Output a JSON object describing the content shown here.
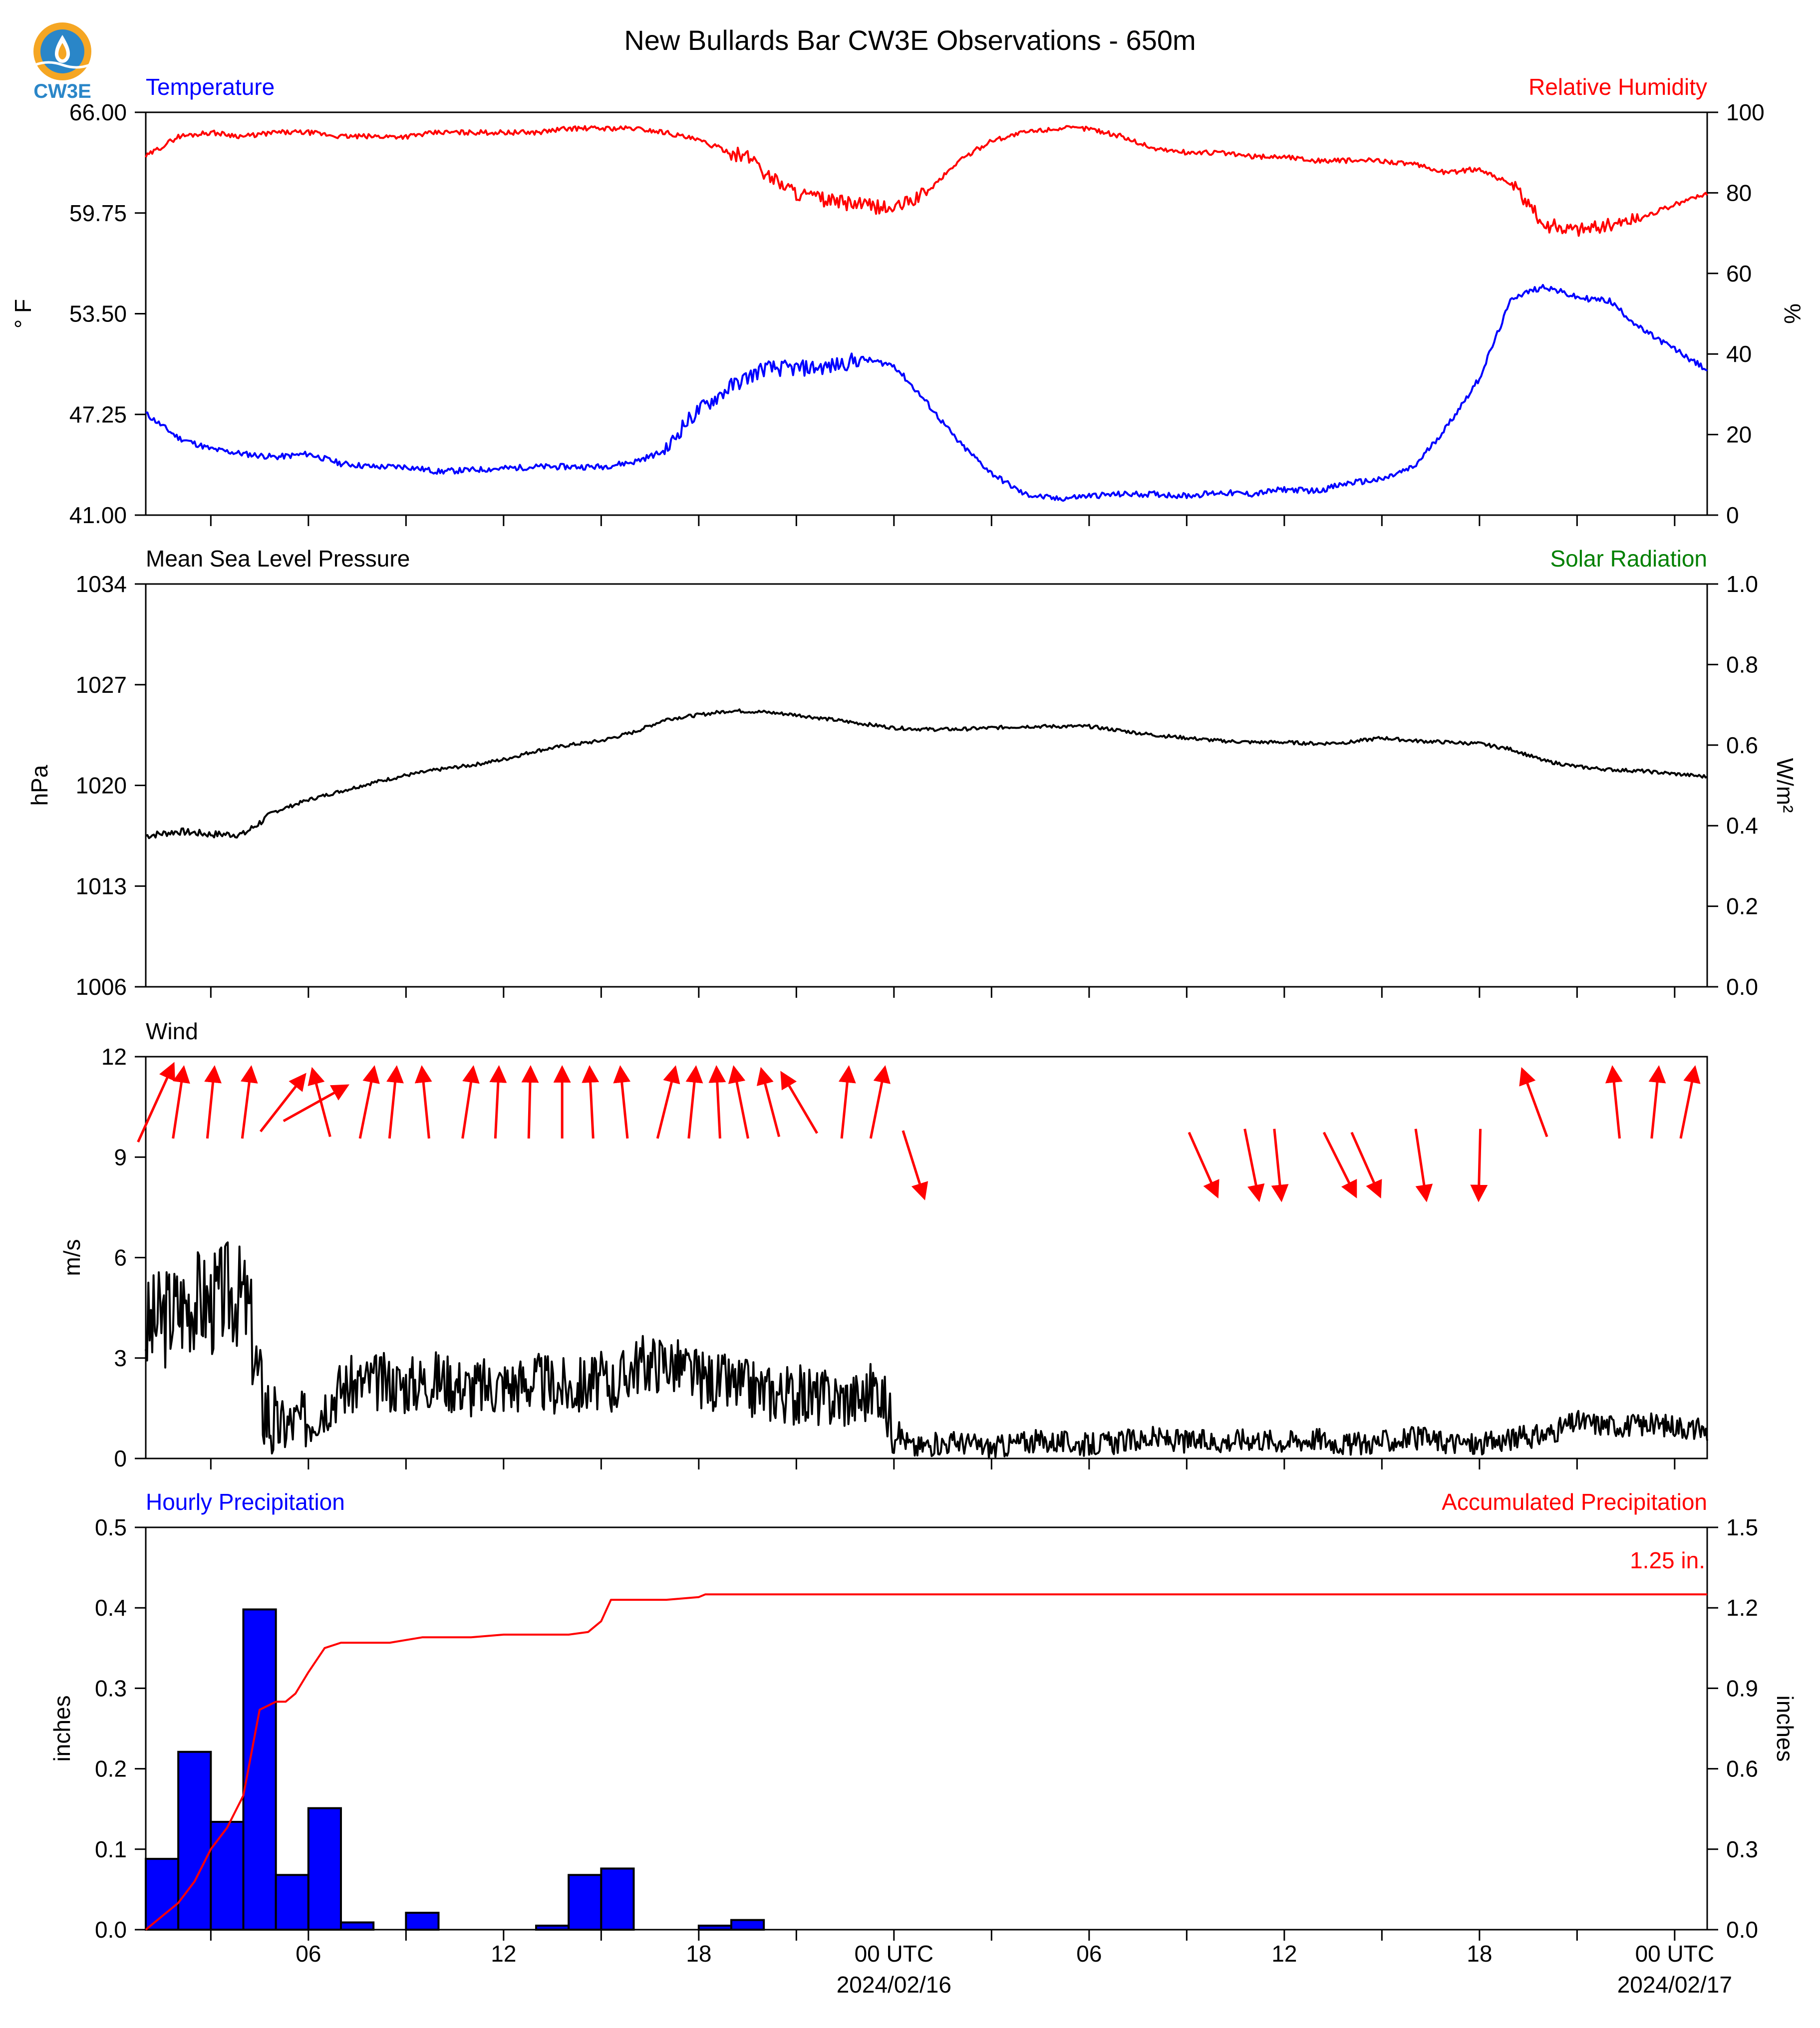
{
  "title": "New Bullards Bar CW3E Observations - 650m",
  "logo_text": "CW3E",
  "colors": {
    "temperature": "#0000ff",
    "humidity": "#ff0000",
    "pressure": "#000000",
    "solar": "#008000",
    "wind": "#000000",
    "wind_arrow": "#ff0000",
    "hourly_bar": "#0000ff",
    "accum": "#ff0000",
    "logo_orange": "#f5a623",
    "logo_blue": "#2a86c8"
  },
  "x_axis": {
    "tick_labels": [
      {
        "hour": 5,
        "text": "06"
      },
      {
        "hour": 11,
        "text": "12"
      },
      {
        "hour": 17,
        "text": "18"
      },
      {
        "hour": 23,
        "text": "00 UTC",
        "sub": "2024/02/16"
      },
      {
        "hour": 29,
        "text": "06"
      },
      {
        "hour": 35,
        "text": "12"
      },
      {
        "hour": 41,
        "text": "18"
      },
      {
        "hour": 47,
        "text": "00 UTC",
        "sub": "2024/02/17"
      }
    ],
    "minor_tick_hours": [
      2,
      8,
      14,
      20,
      26,
      32,
      38,
      44
    ]
  },
  "chart_data": [
    {
      "type": "line",
      "panel": "temperature_humidity",
      "x_range_hours": [
        0,
        48
      ],
      "left_title": "Temperature",
      "right_title": "Relative Humidity",
      "ylabel_left": "° F",
      "ylabel_right": "%",
      "ylim_left": [
        41.0,
        66.0
      ],
      "ylim_right": [
        0,
        100
      ],
      "yticks_left": [
        "41.00",
        "47.25",
        "53.50",
        "59.75",
        "66.00"
      ],
      "yticks_right": [
        "0",
        "20",
        "40",
        "60",
        "80",
        "100"
      ],
      "series": [
        {
          "axis": "left",
          "hours": [
            0,
            1,
            2,
            3,
            4,
            5,
            6,
            7,
            8,
            9,
            10,
            11,
            12,
            13,
            14,
            15,
            16,
            16.5,
            17,
            18,
            19,
            20,
            21,
            22,
            23,
            24,
            25,
            26,
            27,
            28,
            29,
            30,
            31,
            32,
            33,
            34,
            35,
            36,
            37,
            38,
            39,
            40,
            41,
            42,
            43,
            44,
            45,
            46,
            47,
            48
          ],
          "values": [
            47.3,
            45.8,
            45.1,
            44.8,
            44.6,
            44.8,
            44.2,
            44.0,
            44.0,
            43.7,
            43.8,
            43.9,
            44.0,
            44.0,
            44.0,
            44.3,
            45.0,
            46.5,
            47.5,
            49.0,
            50.1,
            50.1,
            50.2,
            50.7,
            50.3,
            48.0,
            45.5,
            43.6,
            42.3,
            42.0,
            42.2,
            42.3,
            42.3,
            42.2,
            42.4,
            42.3,
            42.6,
            42.5,
            43.0,
            43.2,
            44.0,
            46.5,
            49.5,
            54.5,
            55.2,
            54.5,
            54.3,
            52.5,
            51.3,
            50.0
          ]
        },
        {
          "axis": "right",
          "hours": [
            0,
            1,
            2,
            3,
            4,
            5,
            6,
            7,
            8,
            9,
            10,
            11,
            12,
            13,
            14,
            15,
            16,
            17,
            18,
            18.8,
            19,
            20,
            21,
            22,
            23,
            24,
            25,
            26,
            27,
            28,
            29,
            30,
            31,
            32,
            33,
            34,
            35,
            36,
            37,
            38,
            39,
            40,
            41,
            42,
            43,
            44,
            45,
            46,
            47,
            48
          ],
          "values": [
            89,
            94,
            95,
            94,
            95,
            95,
            94,
            94,
            94,
            95,
            95,
            95,
            95,
            96,
            96,
            96,
            95,
            93,
            90,
            88,
            85,
            80,
            78,
            77,
            76,
            80,
            88,
            93,
            95,
            96,
            96,
            94,
            91,
            90,
            90,
            89,
            89,
            88,
            88,
            88,
            87,
            85,
            86,
            82,
            72,
            71,
            72,
            74,
            77,
            80
          ]
        }
      ]
    },
    {
      "type": "line",
      "panel": "pressure_solar",
      "x_range_hours": [
        0,
        48
      ],
      "left_title": "Mean Sea Level Pressure",
      "right_title": "Solar Radiation",
      "ylabel_left": "hPa",
      "ylabel_right": "W/m²",
      "ylim_left": [
        1006,
        1034
      ],
      "ylim_right": [
        0.0,
        1.0
      ],
      "yticks_left": [
        "1006",
        "1013",
        "1020",
        "1027",
        "1034"
      ],
      "yticks_right": [
        "0.0",
        "0.2",
        "0.4",
        "0.6",
        "0.8",
        "1.0"
      ],
      "series": [
        {
          "axis": "left",
          "hours": [
            0,
            1,
            2,
            3,
            4,
            5,
            6,
            7,
            8,
            9,
            10,
            11,
            12,
            13,
            14,
            15,
            16,
            17,
            18,
            19,
            20,
            21,
            22,
            23,
            24,
            25,
            26,
            27,
            28,
            29,
            30,
            31,
            32,
            33,
            34,
            35,
            36,
            37,
            38,
            39,
            40,
            41,
            42,
            43,
            44,
            45,
            46,
            47,
            48
          ],
          "values": [
            1016.5,
            1016.8,
            1016.6,
            1016.6,
            1018.2,
            1019.0,
            1019.6,
            1020.2,
            1020.7,
            1021.1,
            1021.4,
            1021.8,
            1022.4,
            1022.8,
            1023.1,
            1023.7,
            1024.6,
            1024.9,
            1025.2,
            1025.1,
            1024.9,
            1024.6,
            1024.3,
            1024.0,
            1023.9,
            1023.9,
            1024.0,
            1024.1,
            1024.1,
            1024.1,
            1023.8,
            1023.5,
            1023.3,
            1023.1,
            1023.0,
            1023.0,
            1022.9,
            1023.0,
            1023.3,
            1023.1,
            1023.0,
            1022.9,
            1022.5,
            1021.7,
            1021.3,
            1021.1,
            1021.0,
            1020.8,
            1020.6
          ]
        }
      ]
    },
    {
      "type": "line",
      "panel": "wind",
      "x_range_hours": [
        0,
        48
      ],
      "left_title": "Wind",
      "ylabel_left": "m/s",
      "ylim_left": [
        0,
        12
      ],
      "yticks_left": [
        "0",
        "3",
        "6",
        "9",
        "12"
      ],
      "series": [
        {
          "axis": "left",
          "hours": [
            0,
            0.5,
            1,
            1.5,
            2,
            2.5,
            3,
            3.2,
            3.5,
            4,
            5,
            6,
            7,
            8,
            9,
            10,
            11,
            12,
            13,
            14,
            14.5,
            15,
            16,
            17,
            18,
            19,
            20,
            21,
            22,
            22.5,
            23,
            23.3,
            23.6,
            24,
            25,
            26,
            27,
            28,
            29,
            30,
            31,
            32,
            33,
            34,
            35,
            36,
            37,
            38,
            39,
            40,
            41,
            42,
            43,
            44,
            45,
            46,
            47,
            48
          ],
          "values": [
            3.8,
            4.2,
            4.5,
            4.8,
            4.6,
            5.0,
            4.8,
            4.2,
            2.0,
            0.9,
            1.2,
            2.1,
            2.3,
            2.2,
            2.4,
            2.1,
            2.2,
            2.3,
            2.1,
            2.3,
            2.2,
            2.8,
            2.9,
            2.4,
            2.2,
            2.0,
            1.9,
            1.8,
            1.8,
            2.2,
            0.9,
            0.6,
            0.3,
            0.4,
            0.5,
            0.3,
            0.5,
            0.5,
            0.4,
            0.5,
            0.6,
            0.5,
            0.5,
            0.6,
            0.5,
            0.6,
            0.4,
            0.5,
            0.6,
            0.5,
            0.4,
            0.6,
            0.7,
            1.1,
            1.0,
            1.0,
            1.0,
            0.8
          ]
        }
      ],
      "wind_arrows": [
        {
          "hour": 0.3,
          "u": 1.0,
          "v": 2.2,
          "row": "high"
        },
        {
          "hour": 1.0,
          "u": 0.3,
          "v": 2.0,
          "row": "high"
        },
        {
          "hour": 2.0,
          "u": 0.2,
          "v": 2.0,
          "row": "high"
        },
        {
          "hour": 3.1,
          "u": 0.25,
          "v": 2.0,
          "row": "high"
        },
        {
          "hour": 4.2,
          "u": 1.25,
          "v": 1.6,
          "row": "high"
        },
        {
          "hour": 5.2,
          "u": 1.8,
          "v": 1.0,
          "row": "high"
        },
        {
          "hour": 5.4,
          "u": -0.5,
          "v": 1.9,
          "row": "high"
        },
        {
          "hour": 6.8,
          "u": 0.4,
          "v": 2.0,
          "row": "high"
        },
        {
          "hour": 7.6,
          "u": 0.2,
          "v": 2.0,
          "row": "high"
        },
        {
          "hour": 8.6,
          "u": -0.2,
          "v": 2.0,
          "row": "high"
        },
        {
          "hour": 9.9,
          "u": 0.3,
          "v": 2.0,
          "row": "high"
        },
        {
          "hour": 10.8,
          "u": 0.1,
          "v": 2.0,
          "row": "high"
        },
        {
          "hour": 11.8,
          "u": 0.05,
          "v": 2.0,
          "row": "high"
        },
        {
          "hour": 12.8,
          "u": 0.0,
          "v": 2.0,
          "row": "high"
        },
        {
          "hour": 13.7,
          "u": -0.1,
          "v": 2.0,
          "row": "high"
        },
        {
          "hour": 14.7,
          "u": -0.2,
          "v": 2.0,
          "row": "high"
        },
        {
          "hour": 16.0,
          "u": 0.5,
          "v": 2.0,
          "row": "high"
        },
        {
          "hour": 16.8,
          "u": 0.2,
          "v": 2.0,
          "row": "high"
        },
        {
          "hour": 17.6,
          "u": -0.1,
          "v": 2.0,
          "row": "high"
        },
        {
          "hour": 18.3,
          "u": -0.4,
          "v": 2.0,
          "row": "high"
        },
        {
          "hour": 19.2,
          "u": -0.5,
          "v": 1.9,
          "row": "high"
        },
        {
          "hour": 20.1,
          "u": -1.0,
          "v": 1.7,
          "row": "high"
        },
        {
          "hour": 21.5,
          "u": 0.2,
          "v": 2.0,
          "row": "high"
        },
        {
          "hour": 22.5,
          "u": 0.4,
          "v": 2.0,
          "row": "high"
        },
        {
          "hour": 23.6,
          "u": 0.6,
          "v": -1.9,
          "row": "low"
        },
        {
          "hour": 32.5,
          "u": 0.8,
          "v": -1.8,
          "row": "low"
        },
        {
          "hour": 34.0,
          "u": 0.4,
          "v": -2.0,
          "row": "low"
        },
        {
          "hour": 34.8,
          "u": 0.2,
          "v": -2.0,
          "row": "low"
        },
        {
          "hour": 36.7,
          "u": 0.9,
          "v": -1.8,
          "row": "low"
        },
        {
          "hour": 37.5,
          "u": 0.8,
          "v": -1.8,
          "row": "low"
        },
        {
          "hour": 39.2,
          "u": 0.3,
          "v": -2.0,
          "row": "low"
        },
        {
          "hour": 41.0,
          "u": -0.05,
          "v": -2.0,
          "row": "low"
        },
        {
          "hour": 42.7,
          "u": -0.7,
          "v": 1.9,
          "row": "high"
        },
        {
          "hour": 45.2,
          "u": -0.2,
          "v": 2.0,
          "row": "high"
        },
        {
          "hour": 46.4,
          "u": 0.2,
          "v": 2.0,
          "row": "high"
        },
        {
          "hour": 47.4,
          "u": 0.4,
          "v": 2.0,
          "row": "high"
        }
      ]
    },
    {
      "type": "bar",
      "panel": "precipitation",
      "x_range_hours": [
        0,
        48
      ],
      "left_title": "Hourly Precipitation",
      "right_title": "Accumulated Precipitation",
      "ylabel_left": "inches",
      "ylabel_right": "inches",
      "ylim_left": [
        0.0,
        0.5
      ],
      "ylim_right": [
        0.0,
        1.5
      ],
      "yticks_left": [
        "0.0",
        "0.1",
        "0.2",
        "0.3",
        "0.4",
        "0.5"
      ],
      "yticks_right": [
        "0.0",
        "0.3",
        "0.6",
        "0.9",
        "1.2",
        "1.5"
      ],
      "annotation": "1.25 in.",
      "bar_start_hours": [
        0,
        1,
        2,
        3,
        4,
        5,
        6,
        7,
        8,
        9,
        10,
        11,
        12,
        13,
        14,
        15,
        16,
        17,
        18
      ],
      "values": [
        0.088,
        0.221,
        0.134,
        0.398,
        0.068,
        0.151,
        0.009,
        0,
        0.021,
        0,
        0,
        0,
        0.005,
        0.068,
        0.076,
        0,
        0,
        0.005,
        0.012
      ],
      "series": [
        {
          "name": "Accumulated Precipitation",
          "axis": "right",
          "hours": [
            0,
            0.5,
            1,
            1.5,
            2,
            2.5,
            3,
            3.5,
            4,
            4.3,
            4.6,
            5,
            5.5,
            6,
            6.5,
            7,
            7.5,
            8,
            8.5,
            9,
            10,
            11,
            12,
            13,
            13.6,
            14,
            14.3,
            15,
            16,
            17,
            17.2,
            18,
            19,
            20,
            24,
            30,
            36,
            42,
            48
          ],
          "values": [
            0,
            0.05,
            0.1,
            0.18,
            0.3,
            0.38,
            0.5,
            0.82,
            0.85,
            0.85,
            0.88,
            0.96,
            1.05,
            1.07,
            1.07,
            1.07,
            1.07,
            1.08,
            1.09,
            1.09,
            1.09,
            1.1,
            1.1,
            1.1,
            1.11,
            1.15,
            1.23,
            1.23,
            1.23,
            1.24,
            1.25,
            1.25,
            1.25,
            1.25,
            1.25,
            1.25,
            1.25,
            1.25,
            1.25
          ]
        }
      ]
    }
  ]
}
